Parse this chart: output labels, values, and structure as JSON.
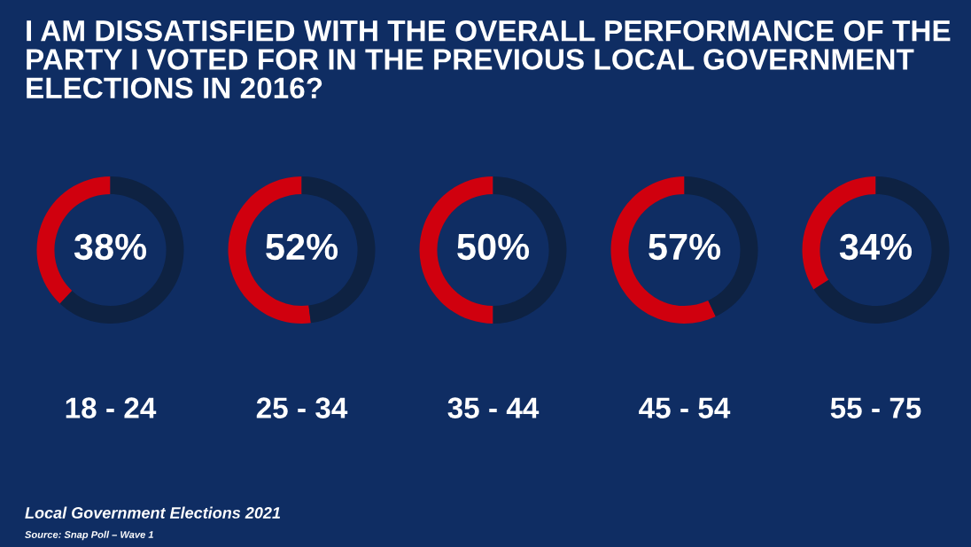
{
  "chart_data": [
    {
      "type": "donut",
      "title": "I AM DISSATISFIED WITH THE OVERALL PERFORMANCE OF THE PARTY I VOTED FOR IN THE PREVIOUS LOCAL GOVERNMENT ELECTIONS IN 2016?",
      "xlabel": "18 - 24",
      "categories": [
        null,
        null
      ],
      "values": [
        38,
        62
      ],
      "colors": [
        "#d0000e",
        "#0e2242"
      ],
      "value_labels": [
        "38%",
        null
      ],
      "annotations": [
        "Local Government Elections 2021",
        "Source: Snap Poll – Wave 1"
      ]
    },
    {
      "type": "donut",
      "xlabel": "25 - 34",
      "categories": [
        null,
        null
      ],
      "values": [
        52,
        48
      ],
      "colors": [
        "#d0000e",
        "#0e2242"
      ],
      "value_labels": [
        "52%",
        null
      ]
    },
    {
      "type": "donut",
      "xlabel": "35 - 44",
      "categories": [
        null,
        null
      ],
      "values": [
        50,
        50
      ],
      "colors": [
        "#d0000e",
        "#0e2242"
      ],
      "value_labels": [
        "50%",
        null
      ]
    },
    {
      "type": "donut",
      "xlabel": "45 - 54",
      "categories": [
        null,
        null
      ],
      "values": [
        57,
        43
      ],
      "colors": [
        "#d0000e",
        "#0e2242"
      ],
      "value_labels": [
        "57%",
        null
      ]
    },
    {
      "type": "donut",
      "xlabel": "55 - 75",
      "categories": [
        null,
        null
      ],
      "values": [
        34,
        66
      ],
      "colors": [
        "#d0000e",
        "#0e2242"
      ],
      "value_labels": [
        "34%",
        null
      ]
    }
  ]
}
